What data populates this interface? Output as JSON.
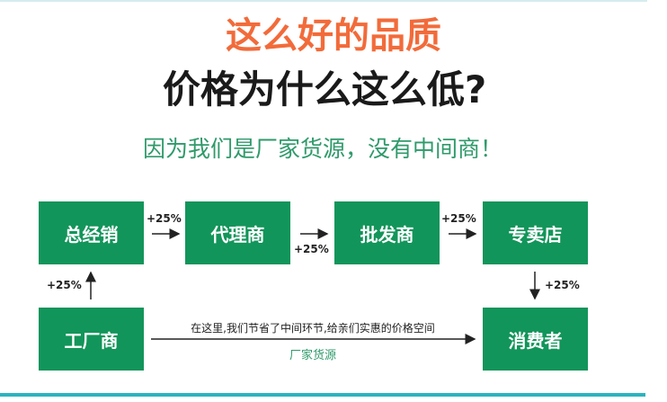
{
  "headline": "这么好的品质",
  "question": "价格为什么这么低?",
  "subtitle": "因为我们是厂家货源，没有中间商！",
  "colors": {
    "headline": "#f26b3a",
    "box": "#12955a",
    "subtitle": "#2f9a6a",
    "accent_line": "#2bb3c0"
  },
  "nodes": {
    "general_distributor": "总经销",
    "agent": "代理商",
    "wholesaler": "批发商",
    "store": "专卖店",
    "factory": "工厂商",
    "consumer": "消费者"
  },
  "markups": {
    "factory_to_general": "+25%",
    "general_to_agent": "+25%",
    "agent_to_wholesaler": "+25%",
    "wholesaler_to_store": "+25%",
    "store_to_consumer": "+25%"
  },
  "direct_path": {
    "note": "在这里,我们节省了中间环节,给亲们实惠的价格空间",
    "label": "厂家货源"
  }
}
